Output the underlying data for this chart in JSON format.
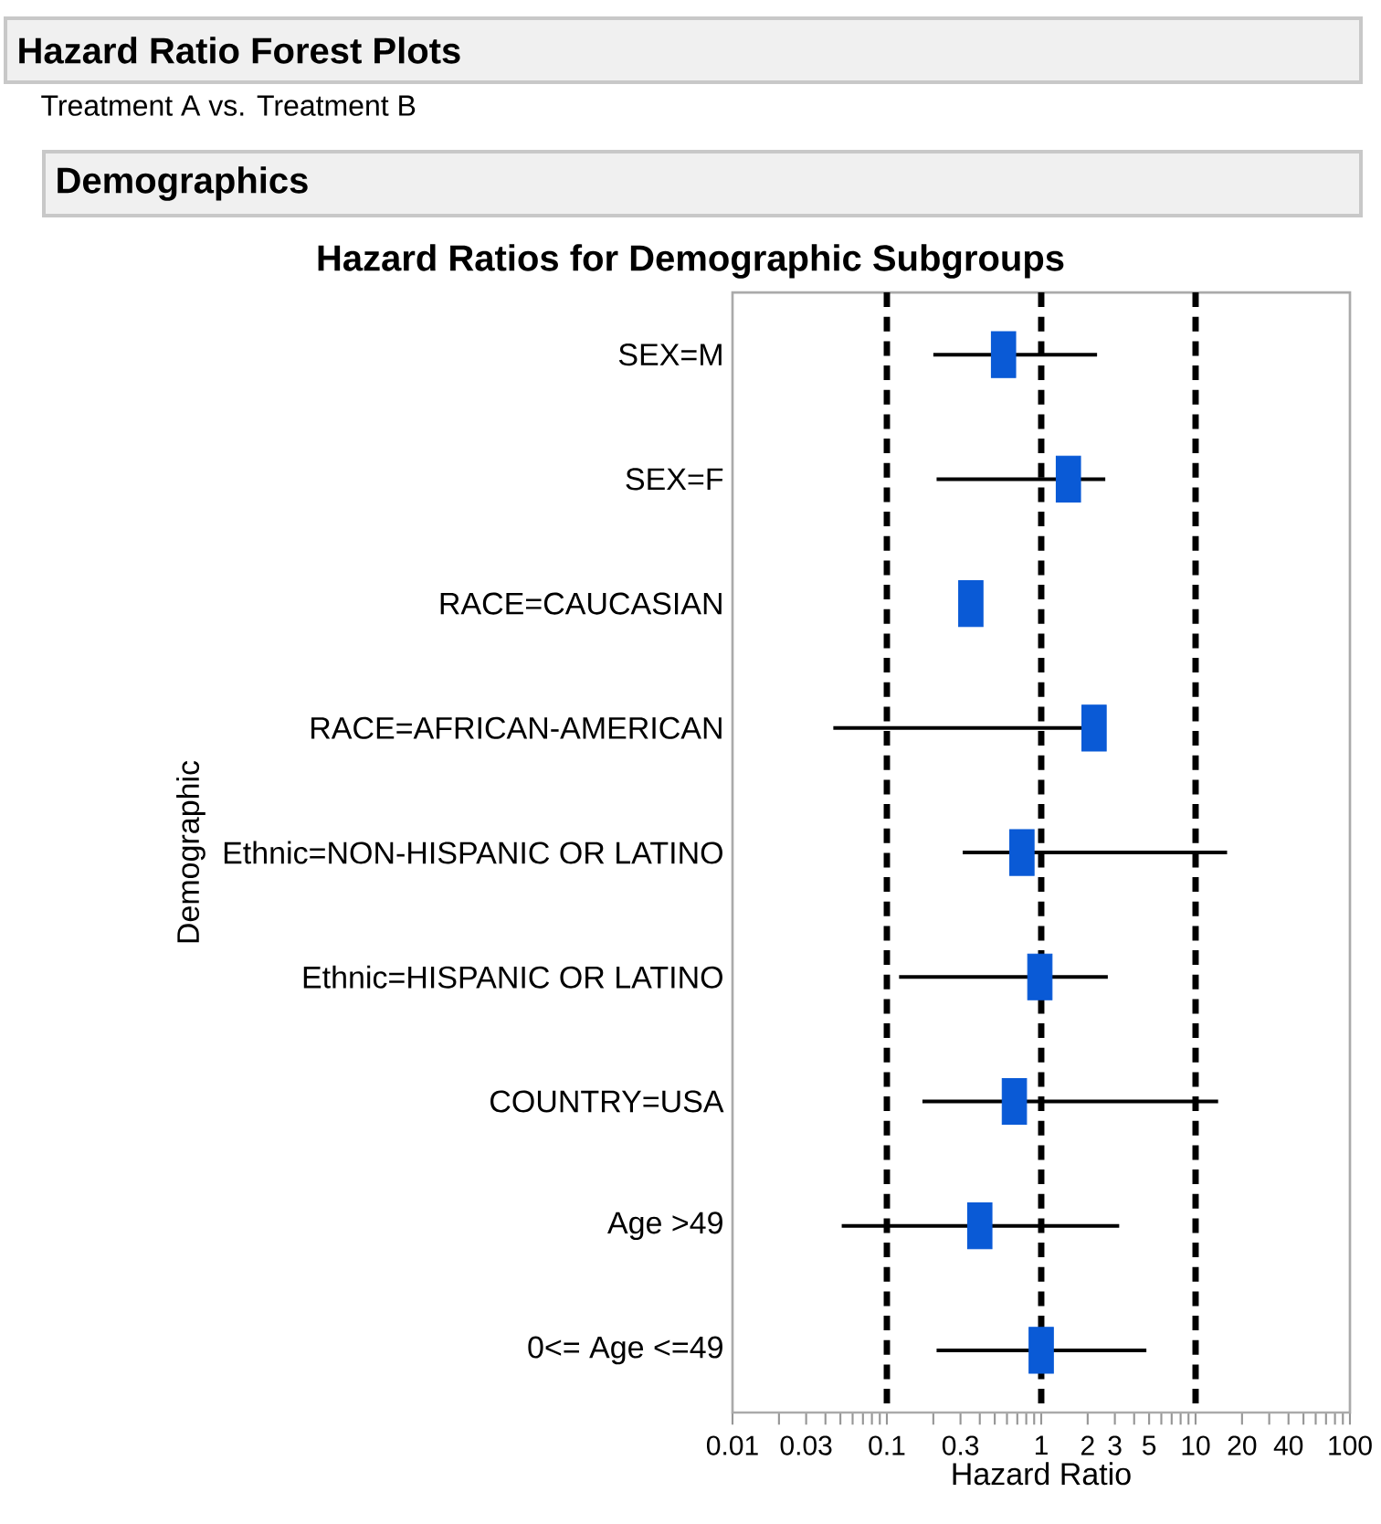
{
  "chart_data": {
    "type": "scatter",
    "orientation": "horizontal",
    "title": "Hazard Ratios for Demographic Subgroups",
    "annotations": [
      "Hazard Ratio Forest Plots",
      "Treatment A vs. Treatment B",
      "Demographics"
    ],
    "xlabel": "Hazard Ratio",
    "ylabel": "Demographic",
    "categories": [
      "SEX=M",
      "SEX=F",
      "RACE=CAUCASIAN",
      "RACE=AFRICAN-AMERICAN",
      "Ethnic=NON-HISPANIC OR LATINO",
      "Ethnic=HISPANIC OR LATINO",
      "COUNTRY=USA",
      "Age >49",
      "0<= Age <=49"
    ],
    "series": [
      {
        "color": "#0a5ad6",
        "values": [
          0.57,
          1.5,
          0.35,
          2.2,
          0.75,
          0.98,
          0.67,
          0.4,
          1.0
        ],
        "errors": [
          [
            0.2,
            2.3
          ],
          [
            0.21,
            2.6
          ],
          null,
          [
            0.045,
            2.6
          ],
          [
            0.31,
            16
          ],
          [
            0.12,
            2.7
          ],
          [
            0.17,
            14
          ],
          [
            0.051,
            3.2
          ],
          [
            0.21,
            4.8
          ]
        ]
      }
    ],
    "marker": "square",
    "log": "x",
    "xlim": [
      0.01,
      100
    ],
    "xticks": [
      {
        "value": 0.01,
        "label": "0.01"
      },
      {
        "value": 0.02,
        "label": null
      },
      {
        "value": 0.03,
        "label": "0.03"
      },
      {
        "value": 0.04,
        "label": null
      },
      {
        "value": 0.05,
        "label": null
      },
      {
        "value": 0.06,
        "label": null
      },
      {
        "value": 0.07,
        "label": null
      },
      {
        "value": 0.08,
        "label": null
      },
      {
        "value": 0.09,
        "label": null
      },
      {
        "value": 0.1,
        "label": "0.1"
      },
      {
        "value": 0.2,
        "label": null
      },
      {
        "value": 0.3,
        "label": "0.3"
      },
      {
        "value": 0.4,
        "label": null
      },
      {
        "value": 0.5,
        "label": null
      },
      {
        "value": 0.6,
        "label": null
      },
      {
        "value": 0.7,
        "label": null
      },
      {
        "value": 0.8,
        "label": null
      },
      {
        "value": 0.9,
        "label": null
      },
      {
        "value": 1,
        "label": "1"
      },
      {
        "value": 2,
        "label": "2"
      },
      {
        "value": 3,
        "label": "3"
      },
      {
        "value": 4,
        "label": null
      },
      {
        "value": 5,
        "label": "5"
      },
      {
        "value": 6,
        "label": null
      },
      {
        "value": 7,
        "label": null
      },
      {
        "value": 8,
        "label": null
      },
      {
        "value": 9,
        "label": null
      },
      {
        "value": 10,
        "label": "10"
      },
      {
        "value": 20,
        "label": "20"
      },
      {
        "value": 30,
        "label": null
      },
      {
        "value": 40,
        "label": "40"
      },
      {
        "value": 50,
        "label": null
      },
      {
        "value": 60,
        "label": null
      },
      {
        "value": 70,
        "label": null
      },
      {
        "value": 80,
        "label": null
      },
      {
        "value": 90,
        "label": null
      },
      {
        "value": 100,
        "label": "100"
      }
    ],
    "ref_lines": [
      {
        "axis": "x",
        "value": 0.1,
        "line_style": "dashed",
        "color": "#000000"
      },
      {
        "axis": "x",
        "value": 1,
        "line_style": "dashed",
        "color": "#000000"
      },
      {
        "axis": "x",
        "value": 10,
        "line_style": "dashed",
        "color": "#000000"
      }
    ]
  }
}
